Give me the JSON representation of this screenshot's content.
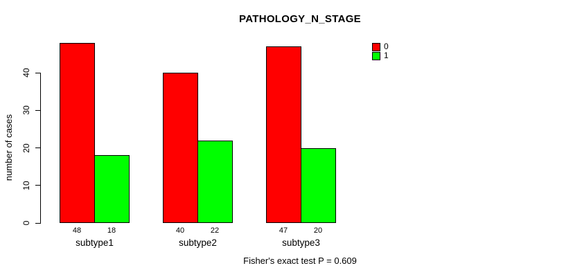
{
  "chart_data": {
    "type": "bar",
    "title": "PATHOLOGY_N_STAGE",
    "ylabel": "number of cases",
    "xlabel": "",
    "categories": [
      "subtype1",
      "subtype2",
      "subtype3"
    ],
    "series": [
      {
        "name": "0",
        "color": "#ff0000",
        "values": [
          48,
          40,
          47
        ]
      },
      {
        "name": "1",
        "color": "#00ff00",
        "values": [
          18,
          22,
          20
        ]
      }
    ],
    "axis_ticks": [
      0,
      10,
      20,
      30,
      40
    ],
    "ylim": [
      0,
      48
    ],
    "grid": "off",
    "legend_position": "top-right",
    "bar_value_labels": [
      [
        "48",
        "18"
      ],
      [
        "40",
        "22"
      ],
      [
        "47",
        "20"
      ]
    ],
    "annotation": "Fisher's exact test P = 0.609"
  },
  "colors": {
    "background": "#ffffff",
    "axis": "#000000",
    "text": "#000000"
  }
}
